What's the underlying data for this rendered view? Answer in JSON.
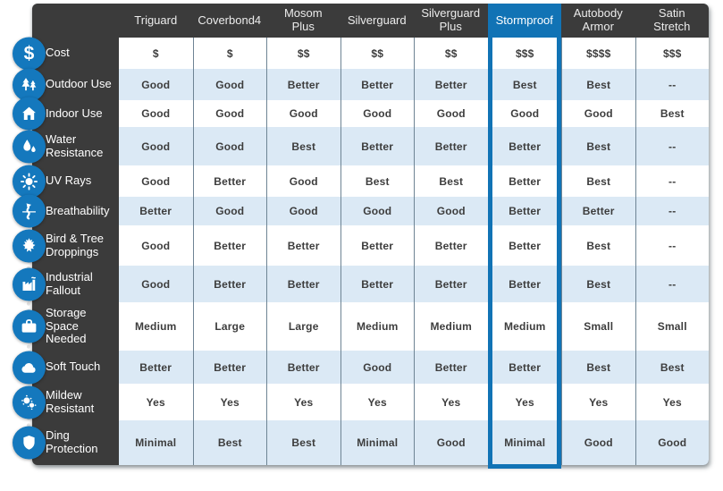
{
  "colors": {
    "panel_dark": "#3b3b3b",
    "accent_blue": "#1173b5",
    "icon_blue": "#1478bd",
    "row_stripe": "#dbe9f5",
    "cell_text": "#3d3d3d"
  },
  "table": {
    "columns": [
      {
        "label": "Triguard",
        "highlight": false
      },
      {
        "label": "Coverbond4",
        "highlight": false
      },
      {
        "label": "Mosom Plus",
        "highlight": false
      },
      {
        "label": "Silverguard",
        "highlight": false
      },
      {
        "label": "Silverguard Plus",
        "highlight": false
      },
      {
        "label": "Stormproof",
        "highlight": true
      },
      {
        "label": "Autobody Armor",
        "highlight": false
      },
      {
        "label": "Satin Stretch",
        "highlight": false
      }
    ],
    "highlighted_column": "Stormproof",
    "rows": [
      {
        "label": "Cost",
        "icon": "dollar-icon",
        "values": [
          "$",
          "$",
          "$$",
          "$$",
          "$$",
          "$$$",
          "$$$$",
          "$$$"
        ]
      },
      {
        "label": "Outdoor Use",
        "icon": "trees-icon",
        "values": [
          "Good",
          "Good",
          "Better",
          "Better",
          "Better",
          "Best",
          "Best",
          "--"
        ]
      },
      {
        "label": "Indoor Use",
        "icon": "house-icon",
        "values": [
          "Good",
          "Good",
          "Good",
          "Good",
          "Good",
          "Good",
          "Good",
          "Best"
        ]
      },
      {
        "label": "Water Resistance",
        "icon": "water-drops-icon",
        "values": [
          "Good",
          "Good",
          "Best",
          "Better",
          "Better",
          "Better",
          "Best",
          "--"
        ]
      },
      {
        "label": "UV Rays",
        "icon": "sun-icon",
        "values": [
          "Good",
          "Better",
          "Good",
          "Best",
          "Best",
          "Better",
          "Best",
          "--"
        ]
      },
      {
        "label": "Breathability",
        "icon": "airflow-icon",
        "values": [
          "Better",
          "Good",
          "Good",
          "Good",
          "Good",
          "Better",
          "Better",
          "--"
        ]
      },
      {
        "label": "Bird & Tree Droppings",
        "icon": "maple-leaf-icon",
        "values": [
          "Good",
          "Better",
          "Better",
          "Better",
          "Better",
          "Better",
          "Best",
          "--"
        ]
      },
      {
        "label": "Industrial Fallout",
        "icon": "factory-icon",
        "values": [
          "Good",
          "Better",
          "Better",
          "Better",
          "Better",
          "Better",
          "Best",
          "--"
        ]
      },
      {
        "label": "Storage Space Needed",
        "icon": "briefcase-icon",
        "values": [
          "Medium",
          "Large",
          "Large",
          "Medium",
          "Medium",
          "Medium",
          "Small",
          "Small"
        ]
      },
      {
        "label": "Soft Touch",
        "icon": "cloud-icon",
        "values": [
          "Better",
          "Better",
          "Better",
          "Good",
          "Better",
          "Better",
          "Best",
          "Best"
        ]
      },
      {
        "label": "Mildew Resistant",
        "icon": "spores-icon",
        "values": [
          "Yes",
          "Yes",
          "Yes",
          "Yes",
          "Yes",
          "Yes",
          "Yes",
          "Yes"
        ]
      },
      {
        "label": "Ding Protection",
        "icon": "shield-icon",
        "values": [
          "Minimal",
          "Best",
          "Best",
          "Minimal",
          "Good",
          "Minimal",
          "Good",
          "Good"
        ]
      }
    ]
  }
}
